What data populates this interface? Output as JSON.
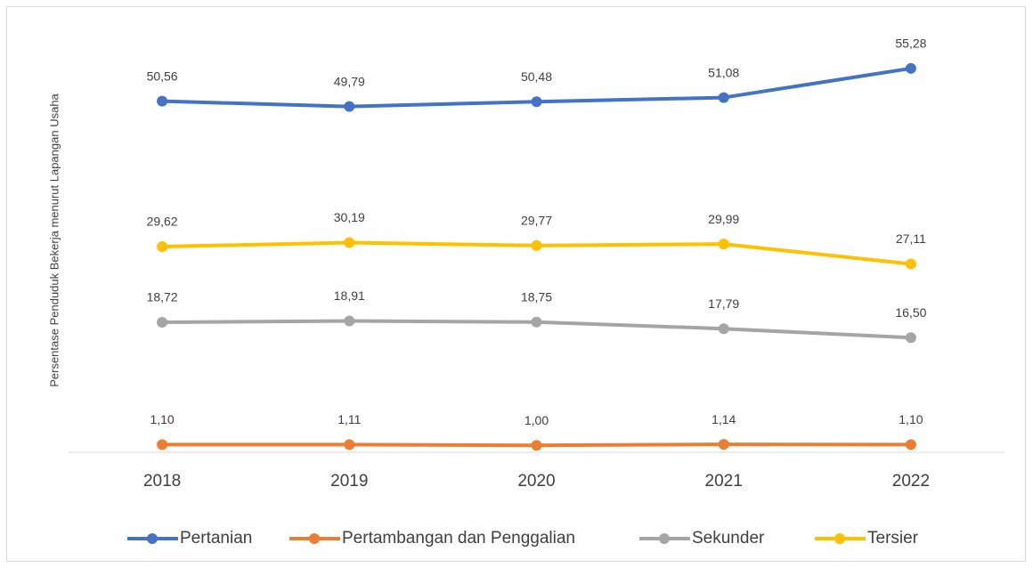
{
  "chart_data": {
    "type": "line",
    "y_label": "Persentase Penduduk Bekerja menurut Lapangan Usaha",
    "categories": [
      "2018",
      "2019",
      "2020",
      "2021",
      "2022"
    ],
    "ylim": [
      0,
      60
    ],
    "series": [
      {
        "name": "Pertanian",
        "color": "#4472c4",
        "values": [
          50.56,
          49.79,
          50.48,
          51.08,
          55.28
        ],
        "value_labels": [
          "50,56",
          "49,79",
          "50,48",
          "51,08",
          "55,28"
        ]
      },
      {
        "name": "Pertambangan dan Penggalian",
        "color": "#ed7d31",
        "values": [
          1.1,
          1.11,
          1.0,
          1.14,
          1.1
        ],
        "value_labels": [
          "1,10",
          "1,11",
          "1,00",
          "1,14",
          "1,10"
        ]
      },
      {
        "name": "Sekunder",
        "color": "#a5a5a5",
        "values": [
          18.72,
          18.91,
          18.75,
          17.79,
          16.5
        ],
        "value_labels": [
          "18,72",
          "18,91",
          "18,75",
          "17,79",
          "16,50"
        ]
      },
      {
        "name": "Tersier",
        "color": "#ffc000",
        "values": [
          29.62,
          30.19,
          29.77,
          29.99,
          27.11
        ],
        "value_labels": [
          "29,62",
          "30,19",
          "29,77",
          "29,99",
          "27,11"
        ]
      }
    ]
  }
}
